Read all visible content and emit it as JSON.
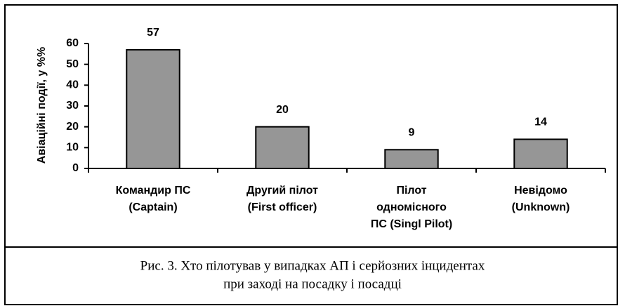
{
  "chart_data": {
    "type": "bar",
    "ylabel": "Авіаційні події, у %%",
    "categories": [
      [
        "Командир ПС",
        "(Captain)"
      ],
      [
        "Другий пілот",
        "(First officer)"
      ],
      [
        "Пілот",
        "одномісного",
        "ПС (Singl Pilot)"
      ],
      [
        "Невідомо",
        "(Unknown)"
      ]
    ],
    "values": [
      57,
      20,
      9,
      14
    ],
    "color": "#969696",
    "ylim": [
      0,
      60
    ],
    "yticks": [
      0,
      10,
      20,
      30,
      40,
      50,
      60
    ],
    "grid": false,
    "caption": [
      "Рис. 3. Хто пілотував у випадках АП і серйозних інцидентах",
      "при заході на посадку і посадці"
    ]
  }
}
